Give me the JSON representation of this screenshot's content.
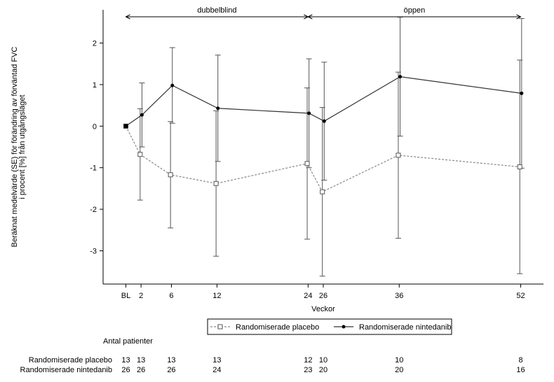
{
  "chart_data": {
    "type": "line",
    "xlabel": "Veckor",
    "ylabel_lines": [
      "Beräknat medelvärde (SE) för förändring av förväntad FVC",
      "i procent [%] från utgångsläget"
    ],
    "x_tick_labels": [
      "BL",
      "2",
      "6",
      "12",
      "24",
      "26",
      "36",
      "52"
    ],
    "x_tick_values": [
      0,
      2,
      6,
      12,
      24,
      26,
      36,
      52
    ],
    "y_ticks": [
      -3,
      -2,
      -1,
      0,
      1,
      2
    ],
    "ylim": [
      -3.8,
      2.8
    ],
    "xlim": [
      -3,
      55
    ],
    "periods": [
      {
        "label": "dubbelblind",
        "from": 0,
        "to": 24
      },
      {
        "label": "öppen",
        "from": 24,
        "to": 52
      }
    ],
    "series": [
      {
        "name": "Randomiserade placebo",
        "x": [
          0,
          2,
          6,
          12,
          24,
          26,
          36,
          52
        ],
        "y": [
          0,
          -0.68,
          -1.17,
          -1.38,
          -0.9,
          -1.58,
          -0.7,
          -0.98
        ],
        "err": [
          0,
          1.1,
          1.28,
          1.75,
          1.82,
          2.03,
          2.0,
          2.57
        ],
        "color": "#888888",
        "marker": "open-square",
        "dash": true
      },
      {
        "name": "Randomiserade nintedanib",
        "x": [
          0,
          2,
          6,
          12,
          24,
          26,
          36,
          52
        ],
        "y": [
          0,
          0.27,
          0.98,
          0.43,
          0.31,
          0.12,
          1.19,
          0.79
        ],
        "err": [
          0,
          0.77,
          0.91,
          1.28,
          1.31,
          1.42,
          1.43,
          1.8
        ],
        "color": "#333333",
        "marker": "filled-circle",
        "dash": false
      }
    ],
    "legend_position": "bottom"
  },
  "patients": {
    "heading": "Antal patienter",
    "rows": [
      {
        "label": "Randomiserade placebo",
        "counts": [
          "13",
          "13",
          "13",
          "13",
          "12",
          "10",
          "10",
          "8"
        ]
      },
      {
        "label": "Randomiserade nintedanib",
        "counts": [
          "26",
          "26",
          "26",
          "24",
          "23",
          "20",
          "20",
          "16"
        ]
      }
    ]
  }
}
